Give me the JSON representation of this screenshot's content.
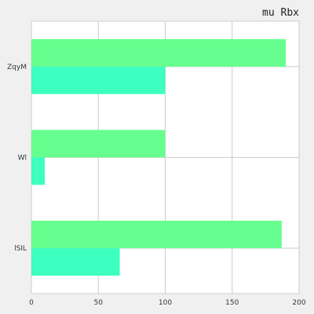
{
  "chart_data": {
    "type": "bar",
    "orientation": "horizontal",
    "title": "mu  Rbx",
    "xlabel": "",
    "ylabel": "",
    "categories": [
      "ZqyM",
      "Wl",
      "lSIL"
    ],
    "series": [
      {
        "color": "#66ff8f",
        "values": [
          190,
          100,
          187
        ]
      },
      {
        "color": "#3dffbf",
        "values": [
          100,
          10,
          66
        ]
      }
    ],
    "xlim": [
      0,
      200
    ],
    "xticks": [
      0,
      50,
      100,
      150,
      200
    ],
    "grid": true,
    "background": "#ffffff",
    "page_background": "#f0f0f0",
    "grid_color": "#cccccc"
  }
}
